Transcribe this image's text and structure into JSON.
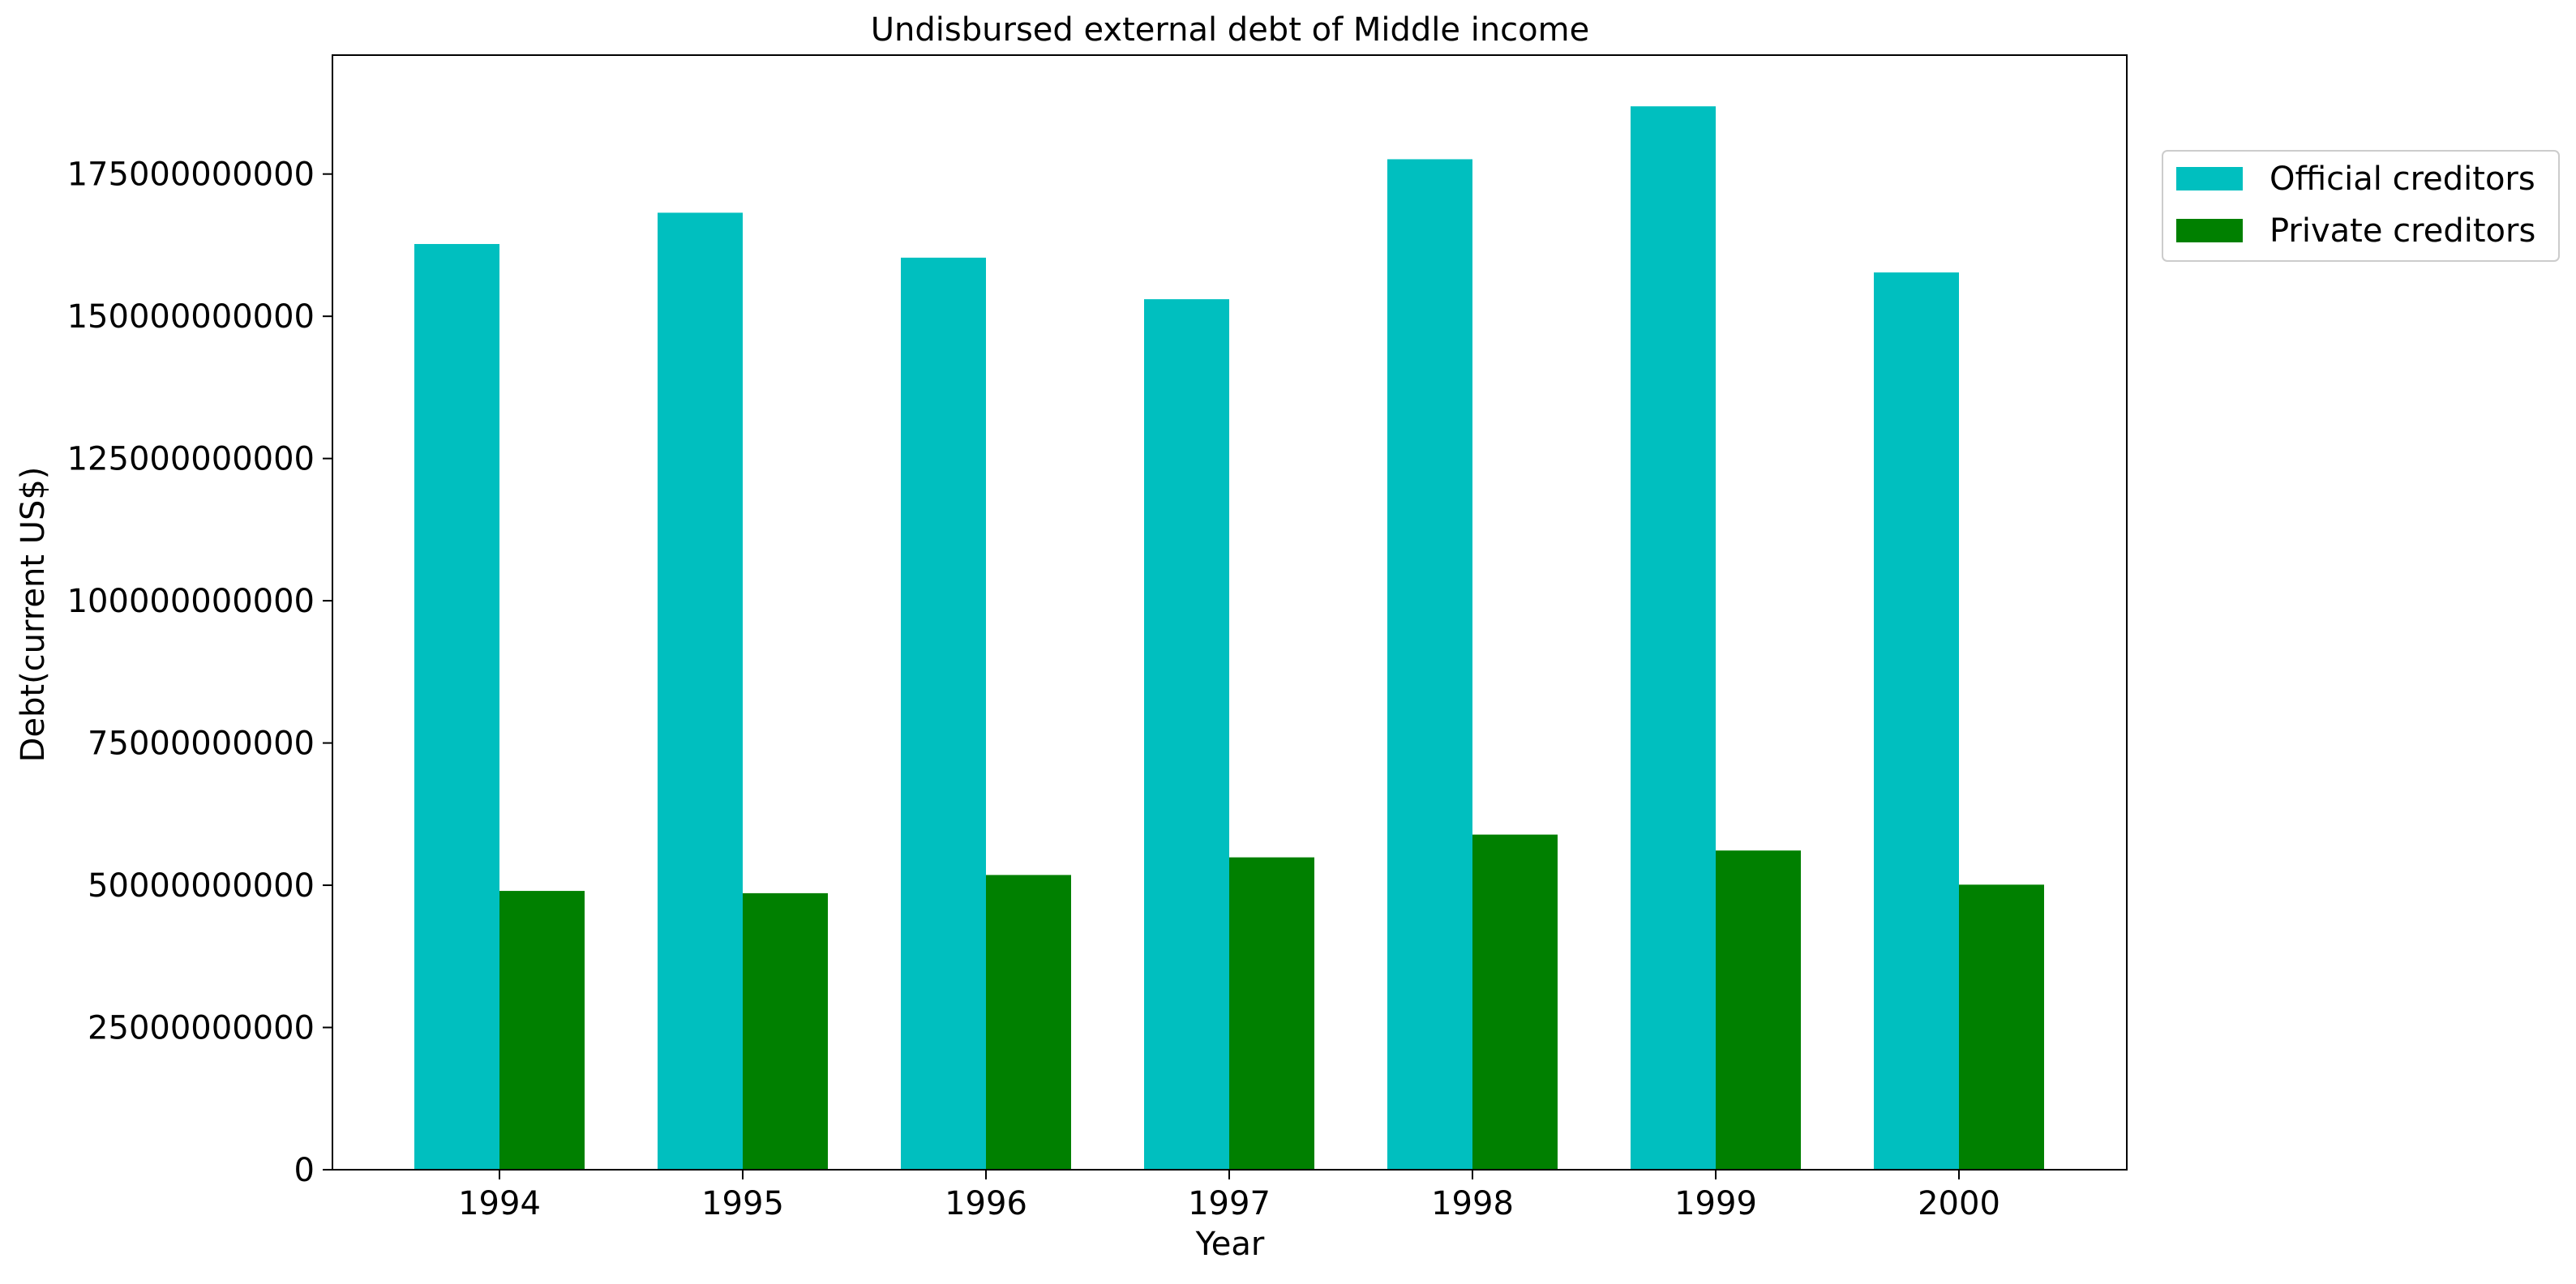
{
  "chart_data": {
    "type": "bar",
    "title": "Undisbursed external debt of Middle income",
    "xlabel": "Year",
    "ylabel": "Debt(current US$)",
    "categories": [
      "1994",
      "1995",
      "1996",
      "1997",
      "1998",
      "1999",
      "2000"
    ],
    "ylim": [
      0,
      195900000000
    ],
    "yticks": [
      0,
      25000000000,
      50000000000,
      75000000000,
      100000000000,
      125000000000,
      150000000000,
      175000000000
    ],
    "ytick_labels": [
      "0",
      "25000000000",
      "50000000000",
      "75000000000",
      "100000000000",
      "125000000000",
      "150000000000",
      "175000000000"
    ],
    "series": [
      {
        "name": "Official creditors",
        "color": "#00bfbf",
        "values": [
          162700000000,
          168200000000,
          160300000000,
          153000000000,
          177600000000,
          186900000000,
          157700000000
        ]
      },
      {
        "name": "Private creditors",
        "color": "#008000",
        "values": [
          49000000000,
          48600000000,
          51800000000,
          54900000000,
          58900000000,
          56100000000,
          50100000000
        ]
      }
    ],
    "grid": false,
    "legend_position": "outside-right-top"
  }
}
